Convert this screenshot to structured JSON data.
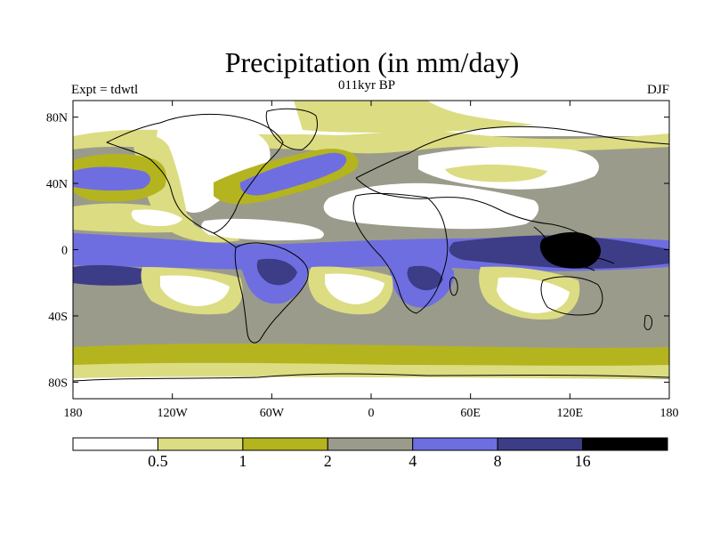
{
  "title": "Precipitation (in mm/day)",
  "experiment_label": "Expt = tdwtl",
  "period_label": "011kyr BP",
  "season_label": "DJF",
  "colors": {
    "lt05": "#ffffff",
    "b05_1": "#dcdc82",
    "b1_2": "#b4b41e",
    "b2_4": "#9b9b8c",
    "b4_8": "#6e6ee1",
    "b8_16": "#3c3c87",
    "gt16": "#000000",
    "coast": "#000000"
  },
  "axes": {
    "x_ticks": [
      "180",
      "120W",
      "60W",
      "0",
      "60E",
      "120E",
      "180"
    ],
    "y_ticks": [
      "80N",
      "40N",
      "0",
      "40S",
      "80S"
    ]
  },
  "colorbar": {
    "labels": [
      "0.5",
      "1",
      "2",
      "4",
      "8",
      "16"
    ],
    "bins": [
      "lt05",
      "b05_1",
      "b1_2",
      "b2_4",
      "b4_8",
      "b8_16",
      "gt16"
    ]
  },
  "chart_data": {
    "type": "heatmap",
    "title": "Precipitation (in mm/day)",
    "variable": "Precipitation",
    "units": "mm/day",
    "experiment": "tdwtl",
    "period": "011kyr BP",
    "season": "DJF",
    "lon_range": [
      -180,
      180
    ],
    "lat_range": [
      -90,
      90
    ],
    "contour_levels": [
      0.5,
      1,
      2,
      4,
      8,
      16
    ],
    "x_ticks": [
      -180,
      -120,
      -60,
      0,
      60,
      120,
      180
    ],
    "y_ticks": [
      80,
      40,
      0,
      -40,
      -80
    ]
  }
}
